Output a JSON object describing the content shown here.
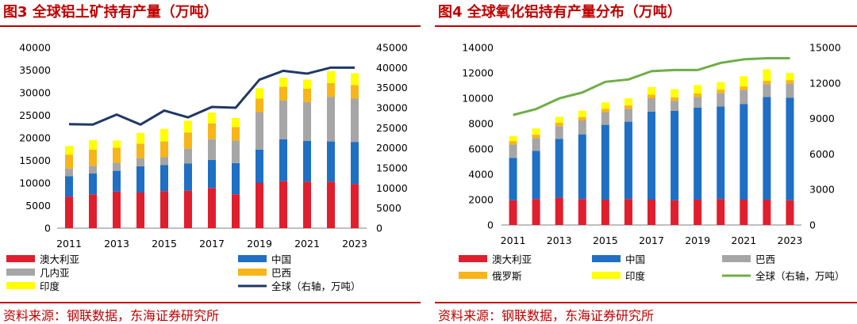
{
  "panels": [
    {
      "title": "图3  全球铝土矿持有产量（万吨）",
      "source": "资料来源：钢联数据，东海证券研究所",
      "legend_right_axis_text": "全球（右轴，万吨）",
      "chart_data": {
        "type": "bar",
        "stacked": true,
        "categories": [
          "2011",
          "2012",
          "2013",
          "2014",
          "2015",
          "2016",
          "2017",
          "2018",
          "2019",
          "2020",
          "2021",
          "2022",
          "2023"
        ],
        "x_tick_labels": [
          "2011",
          "2013",
          "2015",
          "2017",
          "2019",
          "2021",
          "2023"
        ],
        "left_axis": {
          "ylim": [
            0,
            40000
          ],
          "ticks": [
            0,
            5000,
            10000,
            15000,
            20000,
            25000,
            30000,
            35000,
            40000
          ]
        },
        "right_axis": {
          "ylim": [
            0,
            45000
          ],
          "ticks": [
            0,
            5000,
            10000,
            15000,
            20000,
            25000,
            30000,
            35000,
            40000,
            45000
          ]
        },
        "series": [
          {
            "name": "澳大利亚",
            "color": "#e01e2d",
            "values": [
              7000,
              7500,
              8100,
              7900,
              8200,
              8300,
              8900,
              7500,
              10000,
              10400,
              10300,
              10300,
              9800
            ]
          },
          {
            "name": "中国",
            "color": "#1f6fc5",
            "values": [
              4500,
              4600,
              4600,
              5800,
              5800,
              6000,
              6200,
              6900,
              7400,
              9300,
              9000,
              8900,
              9300
            ]
          },
          {
            "name": "几内亚",
            "color": "#a6a6a6",
            "values": [
              1700,
              1700,
              1800,
              1800,
              1700,
              3300,
              4600,
              5000,
              8300,
              8600,
              8600,
              9900,
              9600
            ]
          },
          {
            "name": "巴西",
            "color": "#f7b519",
            "values": [
              3100,
              3600,
              3300,
              3200,
              3500,
              3600,
              3500,
              3000,
              3000,
              3000,
              3000,
              3000,
              3000
            ]
          },
          {
            "name": "印度",
            "color": "#ffff00",
            "values": [
              1900,
              2100,
              1600,
              2400,
              2800,
              2600,
              2400,
              2000,
              2300,
              2000,
              2000,
              2700,
              2600
            ]
          },
          {
            "name": "全球",
            "color": "#203864",
            "type": "line",
            "axis": "right",
            "values": [
              25900,
              25800,
              28300,
              25800,
              29300,
              27600,
              30200,
              30000,
              37000,
              39200,
              38500,
              40000,
              40000
            ]
          }
        ]
      }
    },
    {
      "title": "图4  全球氧化铝持有产量分布（万吨）",
      "source": "资料来源：钢联数据，东海证券研究所",
      "legend_right_axis_text": "全球（右轴，万吨）",
      "chart_data": {
        "type": "bar",
        "stacked": true,
        "categories": [
          "2011",
          "2012",
          "2013",
          "2014",
          "2015",
          "2016",
          "2017",
          "2018",
          "2019",
          "2020",
          "2021",
          "2022",
          "2023"
        ],
        "x_tick_labels": [
          "2011",
          "2013",
          "2015",
          "2017",
          "2019",
          "2021",
          "2023"
        ],
        "left_axis": {
          "ylim": [
            0,
            14000
          ],
          "ticks": [
            0,
            2000,
            4000,
            6000,
            8000,
            10000,
            12000,
            14000
          ]
        },
        "right_axis": {
          "ylim": [
            0,
            15000
          ],
          "ticks": [
            0,
            3000,
            6000,
            9000,
            12000,
            15000
          ]
        },
        "series": [
          {
            "name": "澳大利亚",
            "color": "#e01e2d",
            "values": [
              1950,
              2050,
              2150,
              2050,
              2000,
              2050,
              2000,
              1950,
              2000,
              2050,
              2000,
              2000,
              1950
            ]
          },
          {
            "name": "中国",
            "color": "#1f6fc5",
            "values": [
              3350,
              3800,
              4650,
              5100,
              5900,
              6100,
              6950,
              7050,
              7250,
              7300,
              7550,
              8100,
              8100
            ]
          },
          {
            "name": "巴西",
            "color": "#a6a6a6",
            "values": [
              1050,
              1000,
              1000,
              1100,
              1000,
              1000,
              1050,
              800,
              850,
              1050,
              1100,
              1000,
              1100
            ]
          },
          {
            "name": "俄罗斯",
            "color": "#f7b519",
            "values": [
              270,
              270,
              270,
              270,
              270,
              280,
              280,
              280,
              280,
              280,
              280,
              280,
              280
            ]
          },
          {
            "name": "印度",
            "color": "#ffff00",
            "values": [
              400,
              500,
              450,
              500,
              500,
              560,
              590,
              640,
              660,
              600,
              800,
              900,
              560
            ]
          },
          {
            "name": "全球",
            "color": "#70ad47",
            "type": "line",
            "axis": "right",
            "values": [
              9300,
              9800,
              10700,
              11200,
              12100,
              12300,
              13000,
              13100,
              13100,
              13700,
              14000,
              14100,
              14100
            ]
          }
        ]
      }
    }
  ]
}
